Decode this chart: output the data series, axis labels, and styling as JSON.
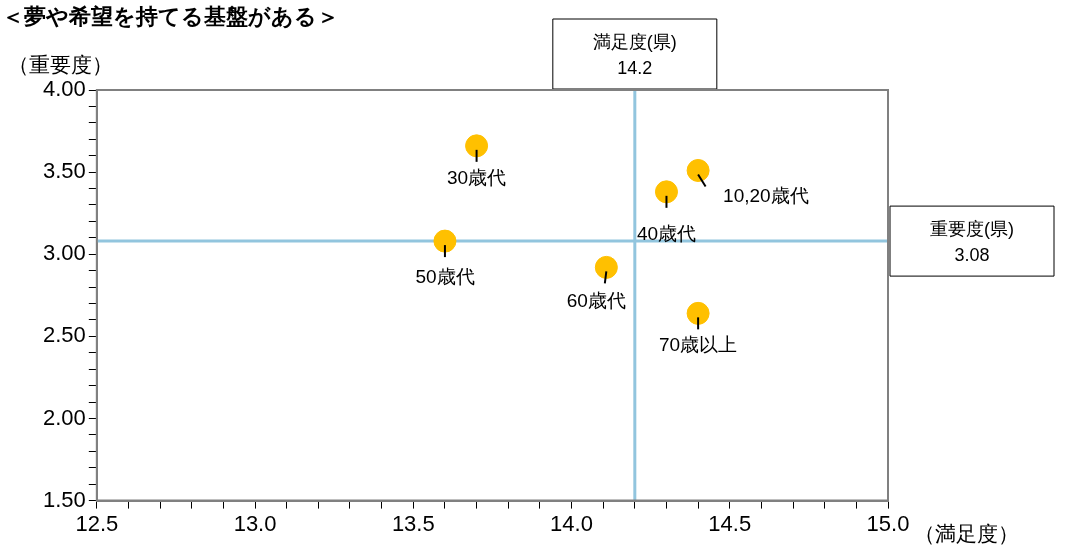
{
  "chart_data": {
    "type": "scatter",
    "title": "＜夢や希望を持てる基盤がある＞",
    "xlabel": "（満足度）",
    "ylabel": "（重要度）",
    "x": [
      13.7,
      14.4,
      14.3,
      13.6,
      14.11,
      14.4
    ],
    "values": [
      3.66,
      3.51,
      3.38,
      3.08,
      2.92,
      2.64
    ],
    "color": "#ffc000",
    "marker": "circle",
    "grid": false,
    "legend": false,
    "xlim": [
      12.5,
      15.0
    ],
    "xticks": [
      {
        "value": 12.5,
        "label": "12.5"
      },
      {
        "value": 12.6,
        "label": null
      },
      {
        "value": 12.7,
        "label": null
      },
      {
        "value": 12.8,
        "label": null
      },
      {
        "value": 12.9,
        "label": null
      },
      {
        "value": 13.0,
        "label": "13.0"
      },
      {
        "value": 13.1,
        "label": null
      },
      {
        "value": 13.2,
        "label": null
      },
      {
        "value": 13.3,
        "label": null
      },
      {
        "value": 13.4,
        "label": null
      },
      {
        "value": 13.5,
        "label": "13.5"
      },
      {
        "value": 13.6,
        "label": null
      },
      {
        "value": 13.7,
        "label": null
      },
      {
        "value": 13.8,
        "label": null
      },
      {
        "value": 13.9,
        "label": null
      },
      {
        "value": 14.0,
        "label": "14.0"
      },
      {
        "value": 14.1,
        "label": null
      },
      {
        "value": 14.2,
        "label": null
      },
      {
        "value": 14.3,
        "label": null
      },
      {
        "value": 14.4,
        "label": null
      },
      {
        "value": 14.5,
        "label": "14.5"
      },
      {
        "value": 14.6,
        "label": null
      },
      {
        "value": 14.7,
        "label": null
      },
      {
        "value": 14.8,
        "label": null
      },
      {
        "value": 14.9,
        "label": null
      },
      {
        "value": 15.0,
        "label": "15.0"
      }
    ],
    "ylim": [
      1.5,
      4.0
    ],
    "yticks": [
      {
        "value": 1.5,
        "label": "1.50"
      },
      {
        "value": 1.6,
        "label": null
      },
      {
        "value": 1.7,
        "label": null
      },
      {
        "value": 1.8,
        "label": null
      },
      {
        "value": 1.9,
        "label": null
      },
      {
        "value": 2.0,
        "label": "2.00"
      },
      {
        "value": 2.1,
        "label": null
      },
      {
        "value": 2.2,
        "label": null
      },
      {
        "value": 2.3,
        "label": null
      },
      {
        "value": 2.4,
        "label": null
      },
      {
        "value": 2.5,
        "label": "2.50"
      },
      {
        "value": 2.6,
        "label": null
      },
      {
        "value": 2.7,
        "label": null
      },
      {
        "value": 2.8,
        "label": null
      },
      {
        "value": 2.9,
        "label": null
      },
      {
        "value": 3.0,
        "label": "3.00"
      },
      {
        "value": 3.1,
        "label": null
      },
      {
        "value": 3.2,
        "label": null
      },
      {
        "value": 3.3,
        "label": null
      },
      {
        "value": 3.4,
        "label": null
      },
      {
        "value": 3.5,
        "label": "3.50"
      },
      {
        "value": 3.6,
        "label": null
      },
      {
        "value": 3.7,
        "label": null
      },
      {
        "value": 3.8,
        "label": null
      },
      {
        "value": 3.9,
        "label": null
      },
      {
        "value": 4.0,
        "label": "4.00"
      }
    ],
    "ref_lines": [
      {
        "axis": "x",
        "value": 14.2,
        "label": "満足度(県)\n14.2",
        "color": "#92c5de"
      },
      {
        "axis": "y",
        "value": 3.08,
        "label": "重要度(県)\n3.08",
        "color": "#92c5de"
      }
    ],
    "annotations": [
      {
        "text": "30歳代",
        "x": 13.7,
        "y": 3.66
      },
      {
        "text": "10,20歳代",
        "x": 14.4,
        "y": 3.51
      },
      {
        "text": "40歳代",
        "x": 14.3,
        "y": 3.38
      },
      {
        "text": "50歳代",
        "x": 13.6,
        "y": 3.08
      },
      {
        "text": "60歳代",
        "x": 14.11,
        "y": 2.92
      },
      {
        "text": "70歳以上",
        "x": 14.4,
        "y": 2.64
      }
    ]
  }
}
